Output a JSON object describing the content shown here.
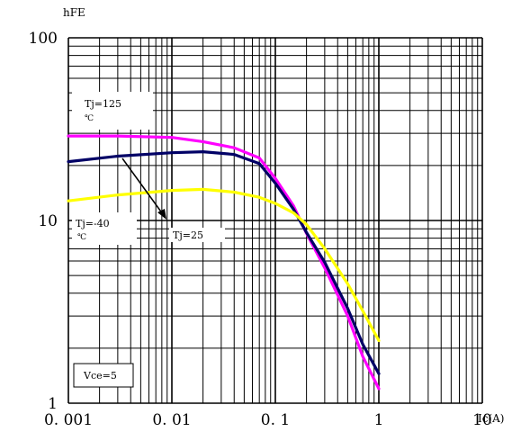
{
  "chart_data": {
    "type": "line",
    "title": "",
    "xlabel": "Ic(A)",
    "ylabel": "hFE",
    "x_scale": "log",
    "y_scale": "log",
    "xlim": [
      0.001,
      10
    ],
    "ylim": [
      1,
      100
    ],
    "x_ticks": [
      0.001,
      0.01,
      0.1,
      1,
      10
    ],
    "x_tick_labels": [
      "0. 001",
      "0. 01",
      "0. 1",
      "1",
      "10"
    ],
    "y_ticks": [
      1,
      10,
      100
    ],
    "y_tick_labels": [
      "1",
      "10",
      "100"
    ],
    "grid": true,
    "series": [
      {
        "name": "Tj=125 ℃",
        "color": "#ff00ff",
        "x": [
          0.001,
          0.003,
          0.01,
          0.02,
          0.04,
          0.07,
          0.1,
          0.15,
          0.2,
          0.3,
          0.5,
          0.7,
          1.0
        ],
        "y": [
          29,
          29,
          28.5,
          27,
          25,
          22,
          17,
          12,
          8.5,
          5.5,
          3.0,
          1.8,
          1.2
        ]
      },
      {
        "name": "Tj=25",
        "color": "#000066",
        "x": [
          0.001,
          0.003,
          0.01,
          0.02,
          0.04,
          0.07,
          0.1,
          0.15,
          0.2,
          0.3,
          0.5,
          0.7,
          1.0
        ],
        "y": [
          21,
          22.5,
          23.5,
          23.8,
          23,
          20.5,
          16,
          11.5,
          8.6,
          5.9,
          3.3,
          2.1,
          1.45
        ]
      },
      {
        "name": "Tj=-40 ℃",
        "color": "#ffff00",
        "x": [
          0.001,
          0.003,
          0.01,
          0.02,
          0.04,
          0.07,
          0.1,
          0.15,
          0.2,
          0.3,
          0.5,
          0.7,
          1.0
        ],
        "y": [
          12.8,
          13.8,
          14.6,
          14.8,
          14.3,
          13.4,
          12.4,
          11.0,
          9.5,
          7.0,
          4.5,
          3.2,
          2.2
        ]
      }
    ],
    "annotations": {
      "t125_line1": "Tj=125",
      "t125_line2": "℃",
      "t40_line1": "Tj=-40",
      "t40_line2": "℃",
      "t25": "Tj=25",
      "vce": "Vce=5"
    }
  }
}
